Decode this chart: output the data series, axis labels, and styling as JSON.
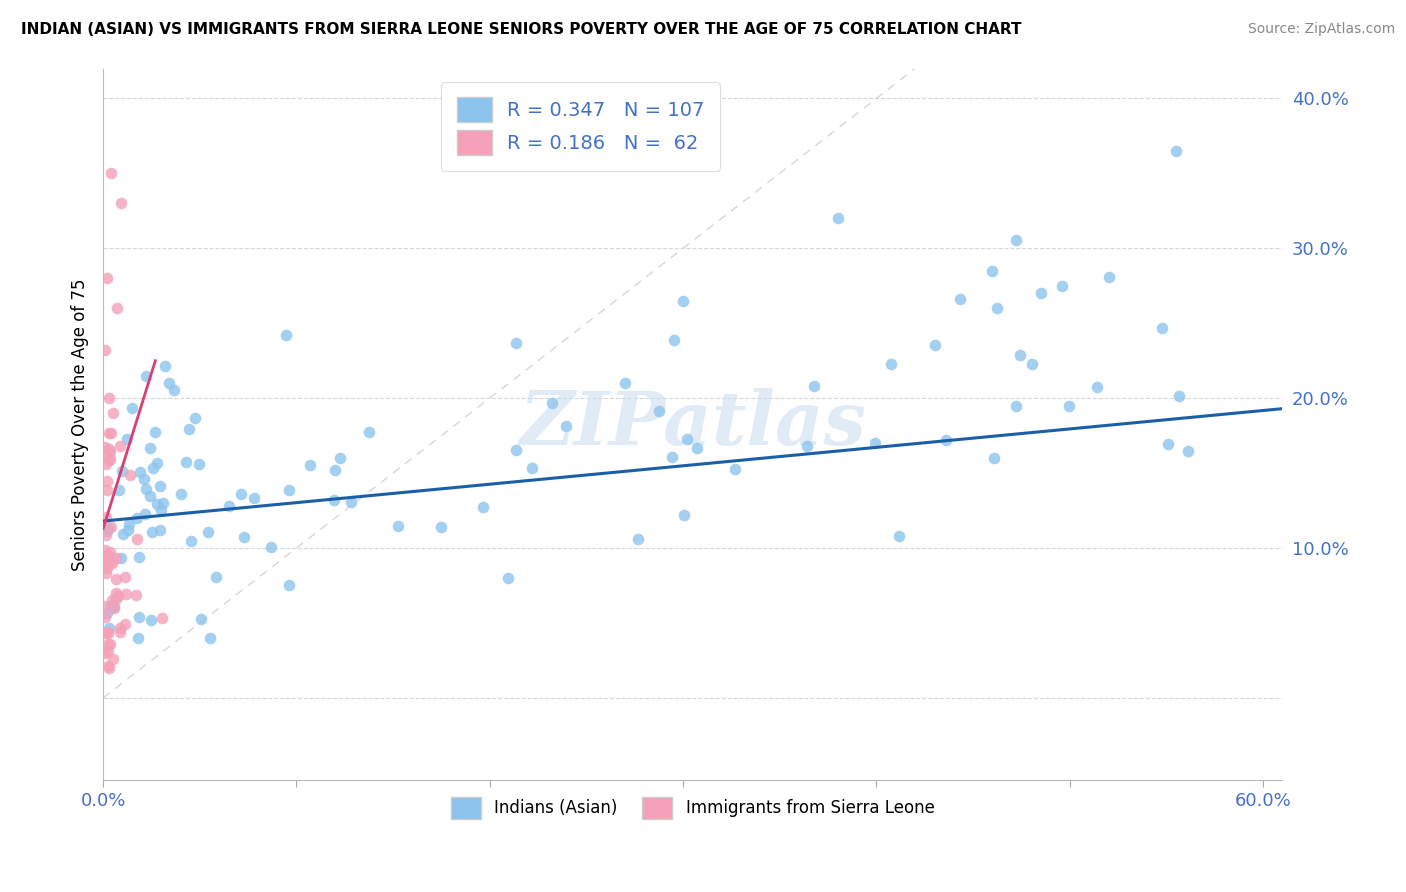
{
  "title": "INDIAN (ASIAN) VS IMMIGRANTS FROM SIERRA LEONE SENIORS POVERTY OVER THE AGE OF 75 CORRELATION CHART",
  "source": "Source: ZipAtlas.com",
  "ylabel": "Seniors Poverty Over the Age of 75",
  "xlim": [
    0.0,
    0.61
  ],
  "ylim": [
    -0.055,
    0.42
  ],
  "r1": 0.347,
  "n1": 107,
  "r2": 0.186,
  "n2": 62,
  "color1": "#8CC4EE",
  "color2": "#F4A0B8",
  "trendline1_color": "#1A5FA8",
  "trendline2_color": "#D94070",
  "watermark": "ZIPatlas",
  "legend1_label": "Indians (Asian)",
  "legend2_label": "Immigrants from Sierra Leone"
}
